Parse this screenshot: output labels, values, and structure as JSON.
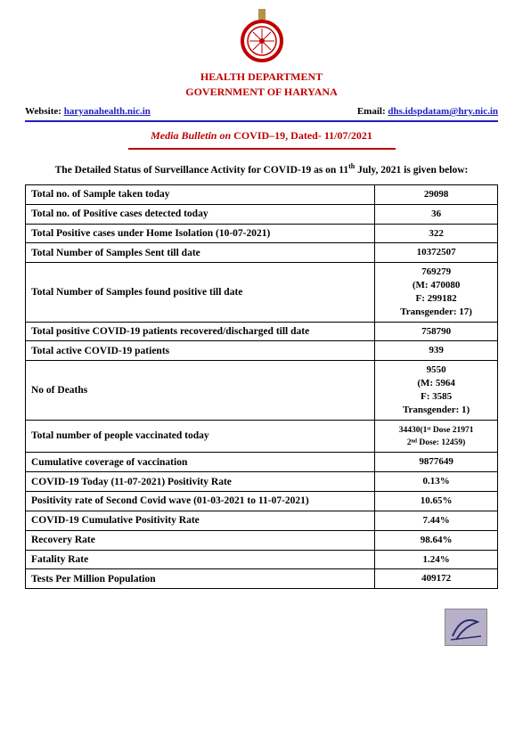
{
  "header": {
    "dept": "HEALTH DEPARTMENT",
    "govt": "GOVERNMENT OF HARYANA",
    "website_label": "Website: ",
    "website_link": "haryanahealth.nic.in",
    "email_label": "Email: ",
    "email_link": "dhs.idspdatam@hry.nic.in"
  },
  "bulletin": {
    "prefix": "Media Bulletin on ",
    "bold": "COVID–19, Dated- 11/07/2021"
  },
  "subhead": {
    "before": "The Detailed Status of Surveillance Activity for COVID-19 as on 11",
    "sup": "th",
    "after": " July, 2021 is given below:"
  },
  "rows": [
    {
      "label": "Total no. of Sample taken today",
      "value": "29098"
    },
    {
      "label": "Total no. of Positive cases detected today",
      "value": "36"
    },
    {
      "label": "Total Positive cases under Home Isolation (10-07-2021)",
      "value": "322"
    },
    {
      "label": "Total Number of Samples Sent till date",
      "value": "10372507"
    },
    {
      "label": "Total Number of Samples found positive till date",
      "value": "769279\n(M: 470080\nF: 299182\nTransgender: 17)"
    },
    {
      "label": "Total positive COVID-19 patients recovered/discharged till date",
      "value": "758790"
    },
    {
      "label": "Total active COVID-19 patients",
      "value": "939"
    },
    {
      "label": "No of Deaths",
      "value": "9550\n(M: 5964\nF: 3585\nTransgender: 1)"
    },
    {
      "label": "Total number of people vaccinated today",
      "value": "34430(1ˢᵗ Dose 21971\n2ⁿᵈ Dose: 12459)",
      "small": true
    },
    {
      "label": "Cumulative coverage of vaccination",
      "value": "9877649"
    },
    {
      "label": "COVID-19 Today (11-07-2021) Positivity Rate",
      "value": "0.13%"
    },
    {
      "label": "Positivity rate of Second Covid wave (01-03-2021 to 11-07-2021)",
      "value": "10.65%"
    },
    {
      "label": "COVID-19 Cumulative Positivity Rate",
      "value": "7.44%"
    },
    {
      "label": "Recovery Rate",
      "value": "98.64%"
    },
    {
      "label": "Fatality Rate",
      "value": "1.24%"
    },
    {
      "label": "Tests Per Million Population",
      "value": "409172"
    }
  ],
  "colors": {
    "red": "#c00000",
    "blue": "#2020c0",
    "stamp_bg": "#b8b0c8",
    "emblem_gold": "#b4924a",
    "emblem_red": "#c00000"
  }
}
